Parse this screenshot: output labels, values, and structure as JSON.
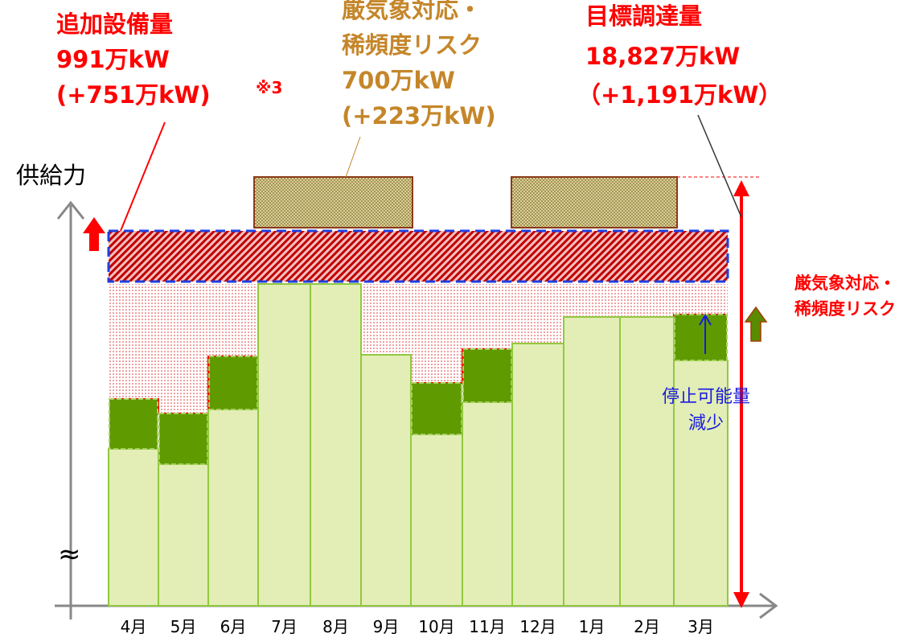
{
  "left_label": {
    "lines": [
      "追加設備量",
      "991万kW",
      "(+751万kW)"
    ],
    "note": "※3"
  },
  "center_label": {
    "lines": [
      "厳気象対応・",
      "稀頻度リスク",
      "700万kW",
      "(+223万kW)"
    ]
  },
  "right_label": {
    "lines": [
      "目標調達量",
      "18,827万kW",
      "（+1,191万kW）"
    ]
  },
  "y_axis_label": "供給力",
  "side_label": {
    "lines": [
      "厳気象対応・",
      "稀頻度リスク"
    ]
  },
  "reduction_label": {
    "lines": [
      "停止可能量",
      "減少"
    ]
  },
  "break_mark": "≈",
  "months": [
    "4月",
    "5月",
    "6月",
    "7月",
    "8月",
    "9月",
    "10月",
    "11月",
    "12月",
    "1月",
    "2月",
    "3月"
  ]
}
